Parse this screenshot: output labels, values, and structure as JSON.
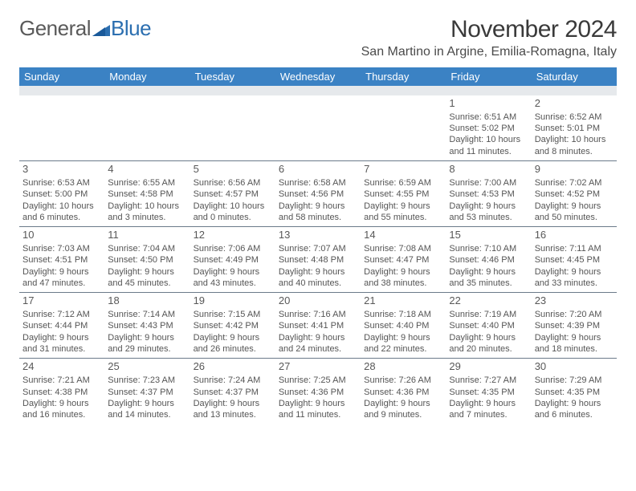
{
  "logo": {
    "part1": "General",
    "part2": "Blue"
  },
  "title": "November 2024",
  "location": "San Martino in Argine, Emilia-Romagna, Italy",
  "columns": [
    "Sunday",
    "Monday",
    "Tuesday",
    "Wednesday",
    "Thursday",
    "Friday",
    "Saturday"
  ],
  "colors": {
    "header_bg": "#3b82c4",
    "header_fg": "#ffffff",
    "spacer_bg": "#e6e9ec",
    "border": "#6b7a8a",
    "text": "#444444"
  },
  "weeks": [
    [
      null,
      null,
      null,
      null,
      null,
      {
        "n": "1",
        "sr": "Sunrise: 6:51 AM",
        "ss": "Sunset: 5:02 PM",
        "dl": "Daylight: 10 hours and 11 minutes."
      },
      {
        "n": "2",
        "sr": "Sunrise: 6:52 AM",
        "ss": "Sunset: 5:01 PM",
        "dl": "Daylight: 10 hours and 8 minutes."
      }
    ],
    [
      {
        "n": "3",
        "sr": "Sunrise: 6:53 AM",
        "ss": "Sunset: 5:00 PM",
        "dl": "Daylight: 10 hours and 6 minutes."
      },
      {
        "n": "4",
        "sr": "Sunrise: 6:55 AM",
        "ss": "Sunset: 4:58 PM",
        "dl": "Daylight: 10 hours and 3 minutes."
      },
      {
        "n": "5",
        "sr": "Sunrise: 6:56 AM",
        "ss": "Sunset: 4:57 PM",
        "dl": "Daylight: 10 hours and 0 minutes."
      },
      {
        "n": "6",
        "sr": "Sunrise: 6:58 AM",
        "ss": "Sunset: 4:56 PM",
        "dl": "Daylight: 9 hours and 58 minutes."
      },
      {
        "n": "7",
        "sr": "Sunrise: 6:59 AM",
        "ss": "Sunset: 4:55 PM",
        "dl": "Daylight: 9 hours and 55 minutes."
      },
      {
        "n": "8",
        "sr": "Sunrise: 7:00 AM",
        "ss": "Sunset: 4:53 PM",
        "dl": "Daylight: 9 hours and 53 minutes."
      },
      {
        "n": "9",
        "sr": "Sunrise: 7:02 AM",
        "ss": "Sunset: 4:52 PM",
        "dl": "Daylight: 9 hours and 50 minutes."
      }
    ],
    [
      {
        "n": "10",
        "sr": "Sunrise: 7:03 AM",
        "ss": "Sunset: 4:51 PM",
        "dl": "Daylight: 9 hours and 47 minutes."
      },
      {
        "n": "11",
        "sr": "Sunrise: 7:04 AM",
        "ss": "Sunset: 4:50 PM",
        "dl": "Daylight: 9 hours and 45 minutes."
      },
      {
        "n": "12",
        "sr": "Sunrise: 7:06 AM",
        "ss": "Sunset: 4:49 PM",
        "dl": "Daylight: 9 hours and 43 minutes."
      },
      {
        "n": "13",
        "sr": "Sunrise: 7:07 AM",
        "ss": "Sunset: 4:48 PM",
        "dl": "Daylight: 9 hours and 40 minutes."
      },
      {
        "n": "14",
        "sr": "Sunrise: 7:08 AM",
        "ss": "Sunset: 4:47 PM",
        "dl": "Daylight: 9 hours and 38 minutes."
      },
      {
        "n": "15",
        "sr": "Sunrise: 7:10 AM",
        "ss": "Sunset: 4:46 PM",
        "dl": "Daylight: 9 hours and 35 minutes."
      },
      {
        "n": "16",
        "sr": "Sunrise: 7:11 AM",
        "ss": "Sunset: 4:45 PM",
        "dl": "Daylight: 9 hours and 33 minutes."
      }
    ],
    [
      {
        "n": "17",
        "sr": "Sunrise: 7:12 AM",
        "ss": "Sunset: 4:44 PM",
        "dl": "Daylight: 9 hours and 31 minutes."
      },
      {
        "n": "18",
        "sr": "Sunrise: 7:14 AM",
        "ss": "Sunset: 4:43 PM",
        "dl": "Daylight: 9 hours and 29 minutes."
      },
      {
        "n": "19",
        "sr": "Sunrise: 7:15 AM",
        "ss": "Sunset: 4:42 PM",
        "dl": "Daylight: 9 hours and 26 minutes."
      },
      {
        "n": "20",
        "sr": "Sunrise: 7:16 AM",
        "ss": "Sunset: 4:41 PM",
        "dl": "Daylight: 9 hours and 24 minutes."
      },
      {
        "n": "21",
        "sr": "Sunrise: 7:18 AM",
        "ss": "Sunset: 4:40 PM",
        "dl": "Daylight: 9 hours and 22 minutes."
      },
      {
        "n": "22",
        "sr": "Sunrise: 7:19 AM",
        "ss": "Sunset: 4:40 PM",
        "dl": "Daylight: 9 hours and 20 minutes."
      },
      {
        "n": "23",
        "sr": "Sunrise: 7:20 AM",
        "ss": "Sunset: 4:39 PM",
        "dl": "Daylight: 9 hours and 18 minutes."
      }
    ],
    [
      {
        "n": "24",
        "sr": "Sunrise: 7:21 AM",
        "ss": "Sunset: 4:38 PM",
        "dl": "Daylight: 9 hours and 16 minutes."
      },
      {
        "n": "25",
        "sr": "Sunrise: 7:23 AM",
        "ss": "Sunset: 4:37 PM",
        "dl": "Daylight: 9 hours and 14 minutes."
      },
      {
        "n": "26",
        "sr": "Sunrise: 7:24 AM",
        "ss": "Sunset: 4:37 PM",
        "dl": "Daylight: 9 hours and 13 minutes."
      },
      {
        "n": "27",
        "sr": "Sunrise: 7:25 AM",
        "ss": "Sunset: 4:36 PM",
        "dl": "Daylight: 9 hours and 11 minutes."
      },
      {
        "n": "28",
        "sr": "Sunrise: 7:26 AM",
        "ss": "Sunset: 4:36 PM",
        "dl": "Daylight: 9 hours and 9 minutes."
      },
      {
        "n": "29",
        "sr": "Sunrise: 7:27 AM",
        "ss": "Sunset: 4:35 PM",
        "dl": "Daylight: 9 hours and 7 minutes."
      },
      {
        "n": "30",
        "sr": "Sunrise: 7:29 AM",
        "ss": "Sunset: 4:35 PM",
        "dl": "Daylight: 9 hours and 6 minutes."
      }
    ]
  ]
}
